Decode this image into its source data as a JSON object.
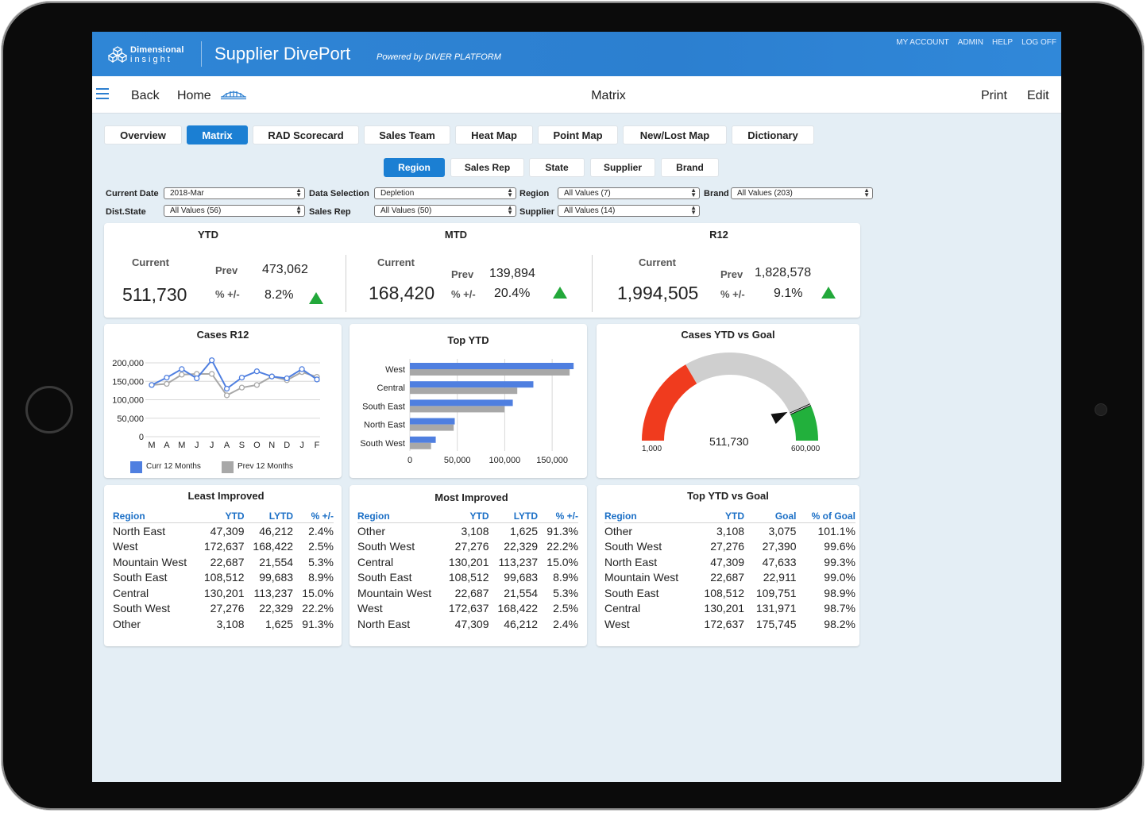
{
  "header": {
    "logo_line1": "Dimensional",
    "logo_line2": "insight",
    "app_title": "Supplier DivePort",
    "powered_by": "Powered by DIVER PLATFORM",
    "links": [
      "MY ACCOUNT",
      "ADMIN",
      "HELP",
      "LOG OFF"
    ]
  },
  "nav": {
    "back": "Back",
    "home": "Home",
    "title": "Matrix",
    "print": "Print",
    "edit": "Edit"
  },
  "tabs": [
    "Overview",
    "Matrix",
    "RAD Scorecard",
    "Sales Team",
    "Heat Map",
    "Point Map",
    "New/Lost Map",
    "Dictionary"
  ],
  "subtabs": [
    "Region",
    "Sales Rep",
    "State",
    "Supplier",
    "Brand"
  ],
  "filters": {
    "current_date": {
      "label": "Current Date",
      "value": "2018-Mar"
    },
    "data_selection": {
      "label": "Data Selection",
      "value": "Depletion"
    },
    "region": {
      "label": "Region",
      "value": "All Values (7)"
    },
    "brand": {
      "label": "Brand",
      "value": "All Values (203)"
    },
    "dist_state": {
      "label": "Dist.State",
      "value": "All Values (56)"
    },
    "sales_rep": {
      "label": "Sales Rep",
      "value": "All Values (50)"
    },
    "supplier": {
      "label": "Supplier",
      "value": "All Values (14)"
    }
  },
  "kpi": {
    "current_label": "Current",
    "prev_label": "Prev",
    "pct_label": "% +/-",
    "ytd": {
      "title": "YTD",
      "current": "511,730",
      "prev": "473,062",
      "pct": "8.2%"
    },
    "mtd": {
      "title": "MTD",
      "current": "168,420",
      "prev": "139,894",
      "pct": "20.4%"
    },
    "r12": {
      "title": "R12",
      "current": "1,994,505",
      "prev": "1,828,578",
      "pct": "9.1%"
    }
  },
  "colors": {
    "curr": "#4f7fe0",
    "prev": "#a8a8a8",
    "red": "#f03b1e",
    "grey": "#cfcfcf",
    "green": "#22b03c",
    "accent": "#1b7fd3"
  },
  "chart_data": [
    {
      "type": "line",
      "title": "Cases R12",
      "categories": [
        "M",
        "A",
        "M",
        "J",
        "J",
        "A",
        "S",
        "O",
        "N",
        "D",
        "J",
        "F"
      ],
      "ylim": [
        0,
        200000
      ],
      "yticks": [
        "200,000",
        "150,000",
        "100,000",
        "50,000",
        "0"
      ],
      "series": [
        {
          "name": "Curr 12 Months",
          "values": [
            140000,
            160000,
            183000,
            158000,
            207000,
            130000,
            160000,
            177000,
            163000,
            158000,
            183000,
            155000
          ]
        },
        {
          "name": "Prev 12 Months",
          "values": [
            140000,
            143000,
            168000,
            170000,
            170000,
            112000,
            133000,
            140000,
            163000,
            153000,
            175000,
            162000
          ]
        }
      ],
      "legend": "bottom"
    },
    {
      "type": "bar",
      "orientation": "horizontal",
      "title": "Top YTD",
      "categories": [
        "West",
        "Central",
        "South East",
        "North East",
        "South West"
      ],
      "xlim": [
        0,
        170000
      ],
      "xticks": [
        "0",
        "50,000",
        "100,000",
        "150,000"
      ],
      "series": [
        {
          "name": "YTD",
          "values": [
            172637,
            130201,
            108512,
            47309,
            27276
          ]
        },
        {
          "name": "LYTD",
          "values": [
            168422,
            113237,
            99683,
            46212,
            22329
          ]
        }
      ]
    },
    {
      "type": "gauge",
      "title": "Cases YTD vs Goal",
      "min_label": "1,000",
      "max_label": "600,000",
      "value_label": "511,730",
      "min": 1000,
      "max": 600000,
      "value": 511730,
      "bands": [
        {
          "from": 1000,
          "to": 200000,
          "color": "red"
        },
        {
          "from": 200000,
          "to": 520000,
          "color": "grey"
        },
        {
          "from": 520000,
          "to": 600000,
          "color": "green"
        }
      ]
    }
  ],
  "tables": {
    "least": {
      "title": "Least Improved",
      "headers": [
        "Region",
        "YTD",
        "LYTD",
        "% +/-"
      ],
      "rows": [
        [
          "North East",
          "47,309",
          "46,212",
          "2.4%"
        ],
        [
          "West",
          "172,637",
          "168,422",
          "2.5%"
        ],
        [
          "Mountain West",
          "22,687",
          "21,554",
          "5.3%"
        ],
        [
          "South East",
          "108,512",
          "99,683",
          "8.9%"
        ],
        [
          "Central",
          "130,201",
          "113,237",
          "15.0%"
        ],
        [
          "South West",
          "27,276",
          "22,329",
          "22.2%"
        ],
        [
          "Other",
          "3,108",
          "1,625",
          "91.3%"
        ]
      ]
    },
    "most": {
      "title": "Most Improved",
      "headers": [
        "Region",
        "YTD",
        "LYTD",
        "% +/-"
      ],
      "rows": [
        [
          "Other",
          "3,108",
          "1,625",
          "91.3%"
        ],
        [
          "South West",
          "27,276",
          "22,329",
          "22.2%"
        ],
        [
          "Central",
          "130,201",
          "113,237",
          "15.0%"
        ],
        [
          "South East",
          "108,512",
          "99,683",
          "8.9%"
        ],
        [
          "Mountain West",
          "22,687",
          "21,554",
          "5.3%"
        ],
        [
          "West",
          "172,637",
          "168,422",
          "2.5%"
        ],
        [
          "North East",
          "47,309",
          "46,212",
          "2.4%"
        ]
      ]
    },
    "goal": {
      "title": "Top YTD vs Goal",
      "headers": [
        "Region",
        "YTD",
        "Goal",
        "% of Goal"
      ],
      "rows": [
        [
          "Other",
          "3,108",
          "3,075",
          "101.1%"
        ],
        [
          "South West",
          "27,276",
          "27,390",
          "99.6%"
        ],
        [
          "North East",
          "47,309",
          "47,633",
          "99.3%"
        ],
        [
          "Mountain West",
          "22,687",
          "22,911",
          "99.0%"
        ],
        [
          "South East",
          "108,512",
          "109,751",
          "98.9%"
        ],
        [
          "Central",
          "130,201",
          "131,971",
          "98.7%"
        ],
        [
          "West",
          "172,637",
          "175,745",
          "98.2%"
        ]
      ]
    }
  }
}
